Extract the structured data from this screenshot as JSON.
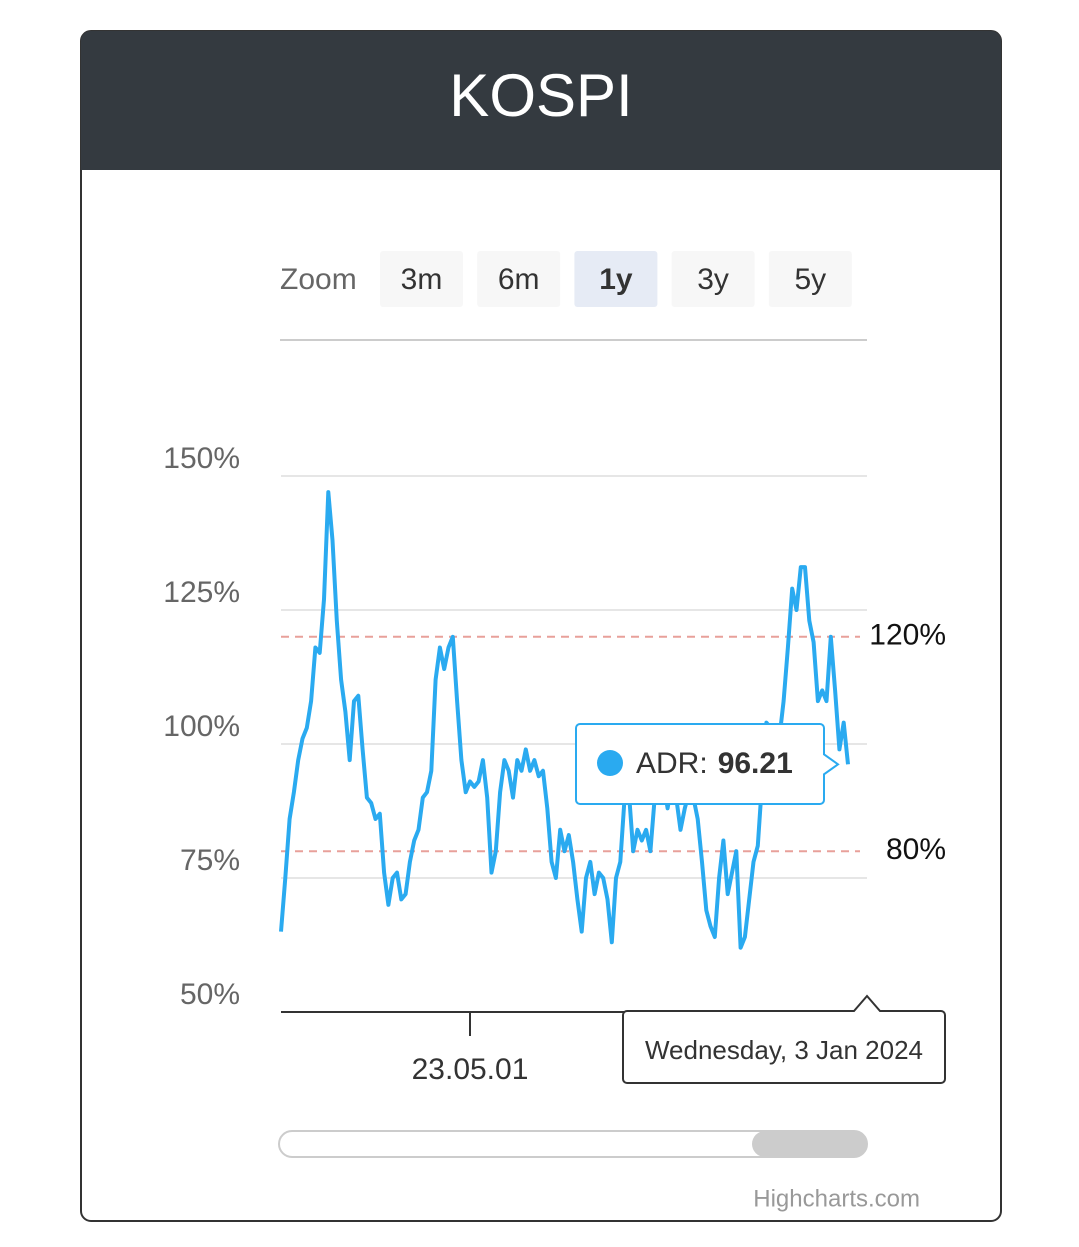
{
  "chart_data": {
    "type": "line",
    "title": "KOSPI",
    "range_selector": {
      "label": "Zoom",
      "buttons": [
        "3m",
        "6m",
        "1y",
        "3y",
        "5y"
      ],
      "selected": 2
    },
    "categories": [
      null,
      null,
      null,
      null,
      null,
      null,
      null,
      null,
      null,
      null,
      null,
      null,
      null,
      null,
      null,
      null,
      null,
      null,
      null,
      null,
      null,
      null,
      null,
      null,
      null,
      null,
      null,
      null,
      null,
      null,
      null,
      null,
      null,
      null,
      null,
      null,
      null,
      null,
      null,
      null,
      null,
      null,
      null,
      null,
      "23.05.01",
      null,
      null,
      null,
      null,
      null,
      null,
      null,
      null,
      null,
      null,
      null,
      null,
      null,
      null,
      null,
      null,
      null,
      null,
      null,
      null,
      null,
      null,
      null,
      null,
      null,
      null,
      null,
      null,
      null,
      null,
      null,
      null,
      null,
      null,
      null,
      null,
      null,
      null,
      null,
      null,
      null,
      null,
      null,
      null,
      null,
      null,
      null,
      null,
      null,
      null,
      null,
      null,
      null,
      null,
      null,
      null,
      null,
      null,
      null,
      null,
      null,
      null,
      null,
      null,
      null,
      null,
      null,
      null,
      null,
      null,
      null,
      null,
      null,
      null,
      null,
      null,
      null,
      null,
      null,
      null,
      null,
      null,
      null,
      null,
      null,
      null,
      null,
      null
    ],
    "series": [
      {
        "color": "#2aaaf0",
        "values": [
          65,
          75,
          86,
          91,
          97,
          101,
          103,
          108,
          118,
          117,
          127,
          147,
          138,
          123,
          112,
          106,
          97,
          108,
          109,
          99,
          90,
          89,
          86,
          87,
          76,
          70,
          75,
          76,
          71,
          72,
          78,
          82,
          84,
          90,
          91,
          95,
          112,
          118,
          114,
          118,
          120,
          108,
          97,
          91,
          93,
          92,
          93,
          97,
          90,
          76,
          80,
          91,
          97,
          95,
          90,
          97,
          95,
          99,
          95,
          97,
          94,
          95,
          88,
          78,
          75,
          84,
          80,
          83,
          78,
          71,
          65,
          75,
          78,
          72,
          76,
          75,
          71,
          63,
          75,
          78,
          90,
          91,
          80,
          84,
          82,
          84,
          80,
          90,
          93,
          93,
          88,
          93,
          90,
          84,
          88,
          91,
          90,
          86,
          78,
          69,
          66,
          64,
          75,
          82,
          72,
          76,
          80,
          62,
          64,
          71,
          78,
          81,
          93,
          104,
          103,
          97,
          101,
          108,
          118,
          129,
          125,
          133,
          133,
          123,
          119,
          108,
          110,
          108,
          120,
          110,
          99,
          104,
          96.21
        ]
      }
    ],
    "ylim": [
      50,
      175
    ],
    "yticks": [
      {
        "value": 50,
        "label": "50%"
      },
      {
        "value": 75,
        "label": "75%"
      },
      {
        "value": 100,
        "label": "100%"
      },
      {
        "value": 125,
        "label": "125%"
      },
      {
        "value": 150,
        "label": "150%"
      }
    ],
    "grid": true,
    "plot_lines": [
      {
        "value": 120,
        "label": "120%",
        "color": "#e8a09a"
      },
      {
        "value": 80,
        "label": "80%",
        "color": "#e8a09a"
      }
    ],
    "tooltip": {
      "label": "ADR:",
      "date": "Wednesday, 3 Jan 2024"
    },
    "credits": "Highcharts.com"
  }
}
